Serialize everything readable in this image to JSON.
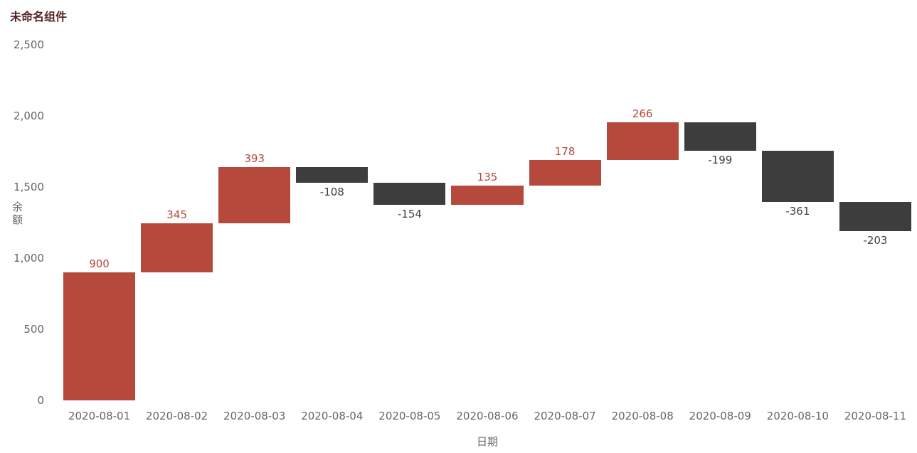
{
  "chart_data": {
    "type": "bar",
    "subtype": "waterfall",
    "title": "未命名组件",
    "xlabel": "日期",
    "ylabel": "余额",
    "categories": [
      "2020-08-01",
      "2020-08-02",
      "2020-08-03",
      "2020-08-04",
      "2020-08-05",
      "2020-08-06",
      "2020-08-07",
      "2020-08-08",
      "2020-08-09",
      "2020-08-10",
      "2020-08-11"
    ],
    "values": [
      900,
      345,
      393,
      -108,
      -154,
      135,
      178,
      266,
      -199,
      -361,
      -203
    ],
    "cumulative": [
      900,
      1245,
      1638,
      1530,
      1376,
      1511,
      1689,
      1955,
      1756,
      1395,
      1192
    ],
    "ylim": [
      0,
      2500
    ],
    "yticks": [
      0,
      500,
      1000,
      1500,
      2000,
      2500
    ],
    "ytick_labels": [
      "0",
      "500",
      "1,000",
      "1,500",
      "2,000",
      "2,500"
    ],
    "grid": false,
    "legend": "none",
    "colors": {
      "positive": "#b5493b",
      "negative": "#3d3d3d",
      "positive_label": "#b5493b",
      "negative_label": "#3f3f3f",
      "axis_text": "#666666",
      "title": "#5c2223",
      "background": "#ffffff"
    }
  }
}
